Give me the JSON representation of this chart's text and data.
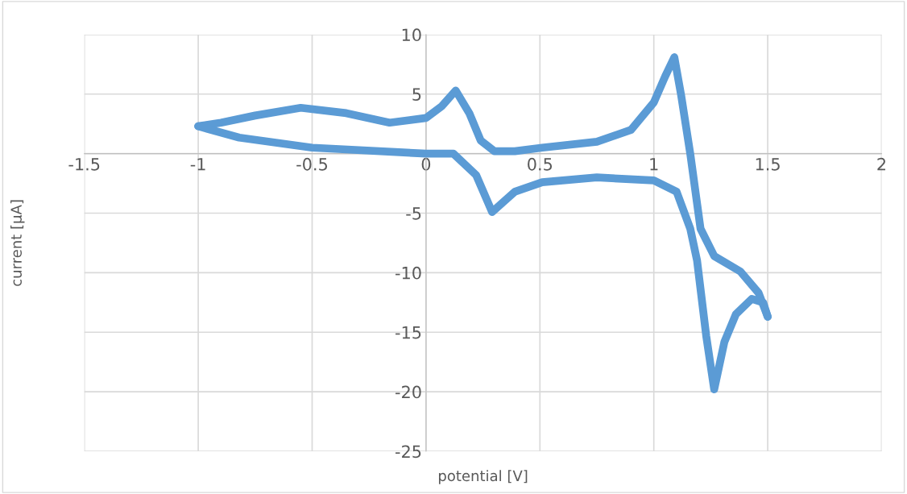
{
  "chart_data": {
    "type": "line",
    "xlabel": "potential [V]",
    "ylabel": "current [µA]",
    "xlim": [
      -1.5,
      2
    ],
    "ylim": [
      -25,
      10
    ],
    "xticks": [
      -1.5,
      -1,
      -0.5,
      0,
      0.5,
      1,
      1.5,
      2
    ],
    "yticks": [
      -25,
      -20,
      -15,
      -10,
      -5,
      {
        "value": 0,
        "label": null
      },
      5,
      10
    ],
    "grid": true,
    "marker": "none",
    "line_style": "solid",
    "series": [
      {
        "color": "#5b9bd5",
        "x": [
          -1,
          -0.9,
          -0.75,
          -0.55,
          -0.35,
          -0.16,
          0,
          0.07,
          0.13,
          0.19,
          0.24,
          0.3,
          0.39,
          0.51,
          0.75,
          0.9,
          1.0,
          1.05,
          1.09,
          1.12,
          1.16,
          1.205,
          1.265,
          1.38,
          1.46,
          1.5
        ],
        "values": [
          2.3,
          2.6,
          3.2,
          3.85,
          3.4,
          2.6,
          3.0,
          4.0,
          5.3,
          3.4,
          1.1,
          0.2,
          0.2,
          0.5,
          1.0,
          2.0,
          4.3,
          6.5,
          8.1,
          4.9,
          0,
          -6.3,
          -8.6,
          -9.9,
          -11.7,
          -13.7
        ]
      },
      {
        "color": "#5b9bd5",
        "x": [
          1.5,
          1.48,
          1.43,
          1.36,
          1.31,
          1.265,
          1.23,
          1.19,
          1.16,
          1.1,
          1.0,
          0.75,
          0.51,
          0.39,
          0.29,
          0.22,
          0.12,
          0,
          -0.5,
          -0.82,
          -1
        ],
        "values": [
          -13.7,
          -12.5,
          -12.2,
          -13.5,
          -15.8,
          -19.8,
          -15.3,
          -9,
          -6.3,
          -3.2,
          -2.25,
          -2.0,
          -2.4,
          -3.2,
          -4.9,
          -1.8,
          0,
          0,
          0.5,
          1.35,
          2.3
        ]
      }
    ]
  }
}
